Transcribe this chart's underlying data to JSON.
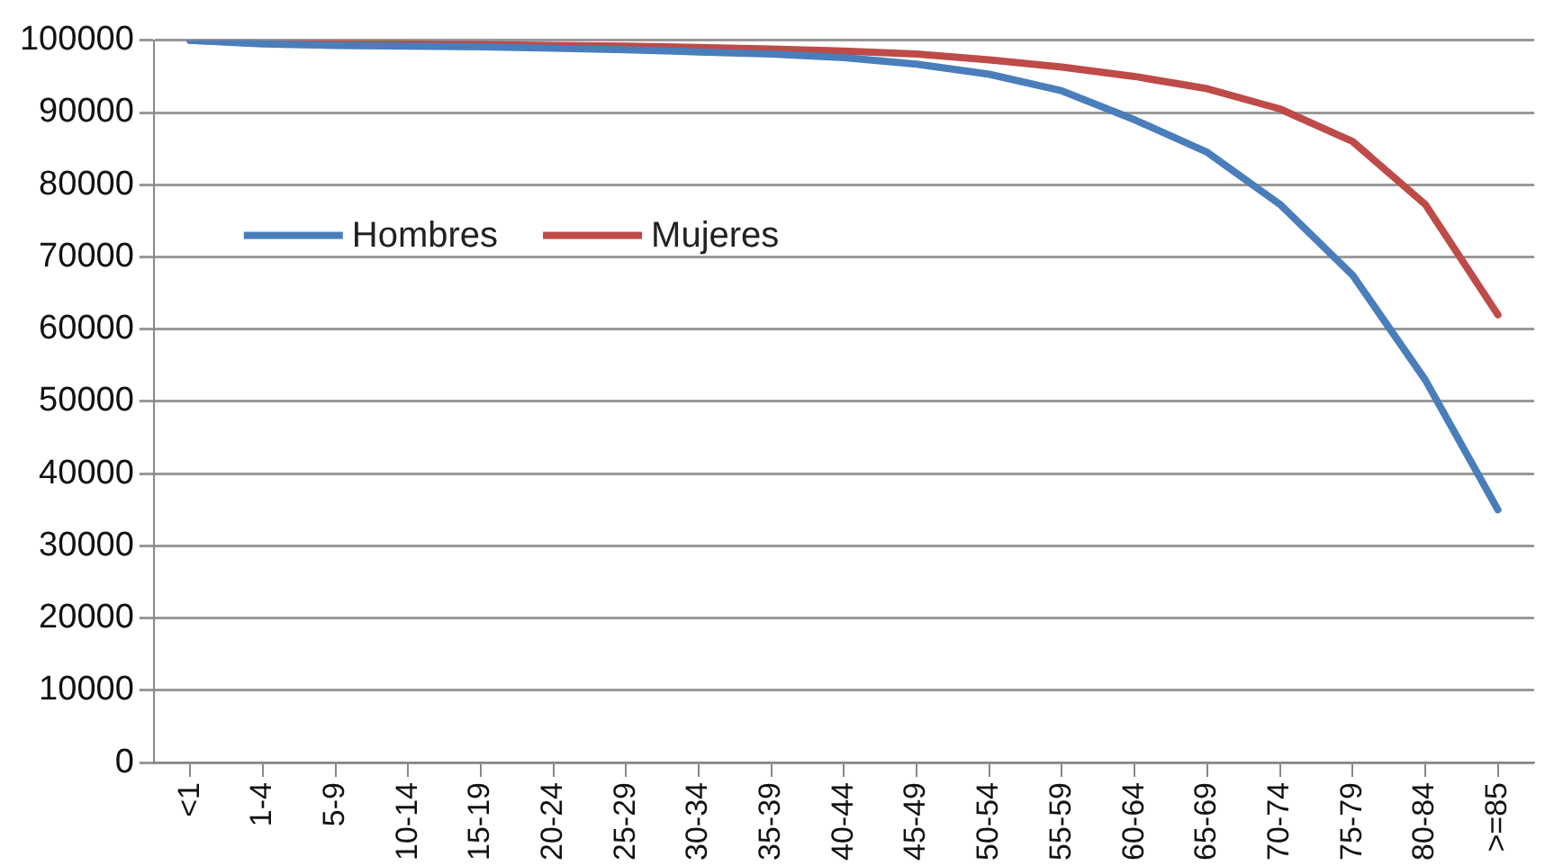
{
  "chart_data": {
    "type": "line",
    "categories": [
      "<1",
      "1-4",
      "5-9",
      "10-14",
      "15-19",
      "20-24",
      "25-29",
      "30-34",
      "35-39",
      "40-44",
      "45-49",
      "50-54",
      "55-59",
      "60-64",
      "65-69",
      "70-74",
      "75-79",
      "80-84",
      ">=85"
    ],
    "series": [
      {
        "name": "Hombres",
        "color": "#4a7ebb",
        "values": [
          100000,
          99500,
          99300,
          99200,
          99100,
          98900,
          98700,
          98400,
          98100,
          97600,
          96700,
          95300,
          93000,
          89000,
          84500,
          77300,
          67500,
          53000,
          35000
        ]
      },
      {
        "name": "Mujeres",
        "color": "#be4b48",
        "values": [
          100000,
          99600,
          99500,
          99500,
          99400,
          99300,
          99200,
          99000,
          98800,
          98500,
          98100,
          97300,
          96300,
          95000,
          93300,
          90500,
          86000,
          77300,
          62000
        ]
      }
    ],
    "ylim": [
      0,
      100000
    ],
    "yticks": [
      0,
      10000,
      20000,
      30000,
      40000,
      50000,
      60000,
      70000,
      80000,
      90000,
      100000
    ],
    "grid": "y",
    "legend": "left",
    "marker": "none",
    "line_style": "solid"
  }
}
